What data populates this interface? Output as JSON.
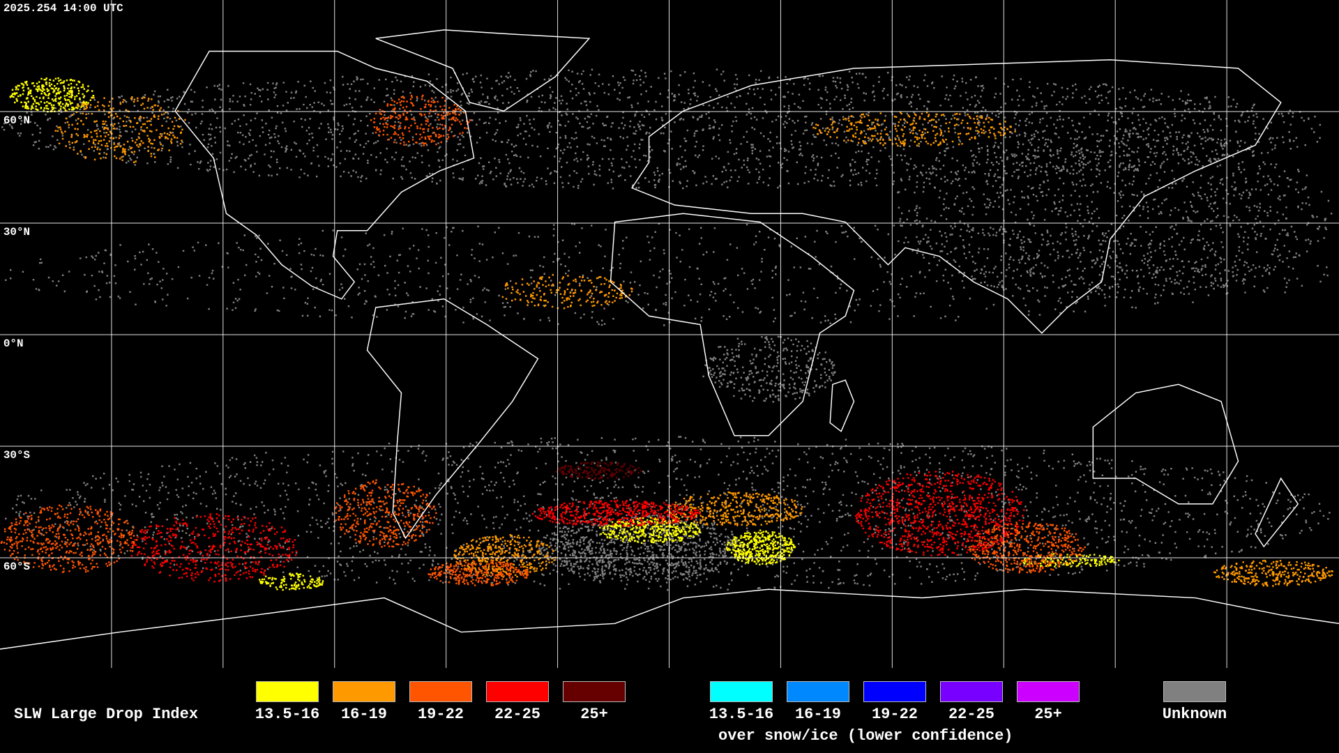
{
  "timestamp": "2025.254 14:00 UTC",
  "latitude_labels": [
    "60°N",
    "30°N",
    "0°N",
    "30°S",
    "60°S"
  ],
  "legend": {
    "title": "SLW Large Drop Index",
    "groups": [
      {
        "items": [
          {
            "label": "13.5-16",
            "color": "#ffff00"
          },
          {
            "label": "16-19",
            "color": "#ff9900"
          },
          {
            "label": "19-22",
            "color": "#ff5500"
          },
          {
            "label": "22-25",
            "color": "#ff0000"
          },
          {
            "label": "25+",
            "color": "#660000"
          }
        ]
      },
      {
        "items": [
          {
            "label": "13.5-16",
            "color": "#00ffff"
          },
          {
            "label": "16-19",
            "color": "#0088ff"
          },
          {
            "label": "19-22",
            "color": "#0000ff"
          },
          {
            "label": "22-25",
            "color": "#7700ff"
          },
          {
            "label": "25+",
            "color": "#cc00ff"
          }
        ],
        "caption": "over snow/ice (lower confidence)"
      },
      {
        "items": [
          {
            "label": "Unknown",
            "color": "#808080"
          }
        ]
      }
    ]
  }
}
